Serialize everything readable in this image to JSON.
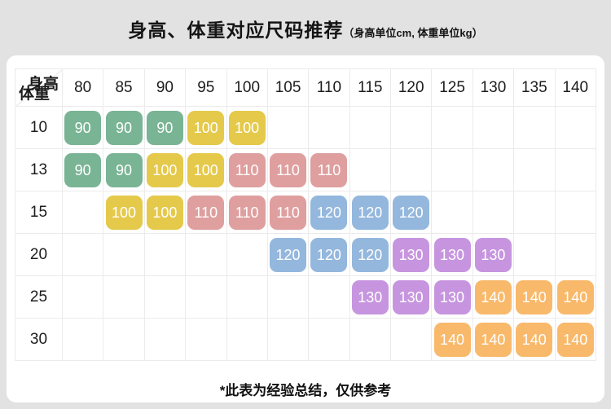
{
  "header": {
    "title": "身高、体重对应尺码推荐",
    "subtitle": "（身高单位cm, 体重单位kg）"
  },
  "table": {
    "corner_top": "身高",
    "corner_bottom": "体重"
  },
  "chart_data": {
    "type": "heatmap",
    "title": "身高、体重对应尺码推荐",
    "subtitle": "（身高单位cm, 体重单位kg）",
    "xlabel": "身高",
    "ylabel": "体重",
    "x_categories": [
      "80",
      "85",
      "90",
      "95",
      "100",
      "105",
      "110",
      "115",
      "120",
      "125",
      "130",
      "135",
      "140"
    ],
    "y_categories": [
      "10",
      "13",
      "15",
      "20",
      "25",
      "30"
    ],
    "cell_values": [
      [
        "90",
        "90",
        "90",
        "100",
        "100",
        "",
        "",
        "",
        "",
        "",
        "",
        "",
        ""
      ],
      [
        "90",
        "90",
        "100",
        "100",
        "110",
        "110",
        "110",
        "",
        "",
        "",
        "",
        "",
        ""
      ],
      [
        "",
        "100",
        "100",
        "110",
        "110",
        "110",
        "120",
        "120",
        "120",
        "",
        "",
        "",
        ""
      ],
      [
        "",
        "",
        "",
        "",
        "",
        "120",
        "120",
        "120",
        "130",
        "130",
        "130",
        "",
        ""
      ],
      [
        "",
        "",
        "",
        "",
        "",
        "",
        "",
        "130",
        "130",
        "130",
        "140",
        "140",
        "140"
      ],
      [
        "",
        "",
        "",
        "",
        "",
        "",
        "",
        "",
        "",
        "140",
        "140",
        "140",
        "140"
      ]
    ]
  },
  "size_colors": {
    "90": "#79b494",
    "100": "#e5c94b",
    "110": "#df9f9f",
    "120": "#94b7dd",
    "130": "#c795df",
    "140": "#f9b96b"
  },
  "footer": {
    "note": "*此表为经验总结，仅供参考"
  }
}
